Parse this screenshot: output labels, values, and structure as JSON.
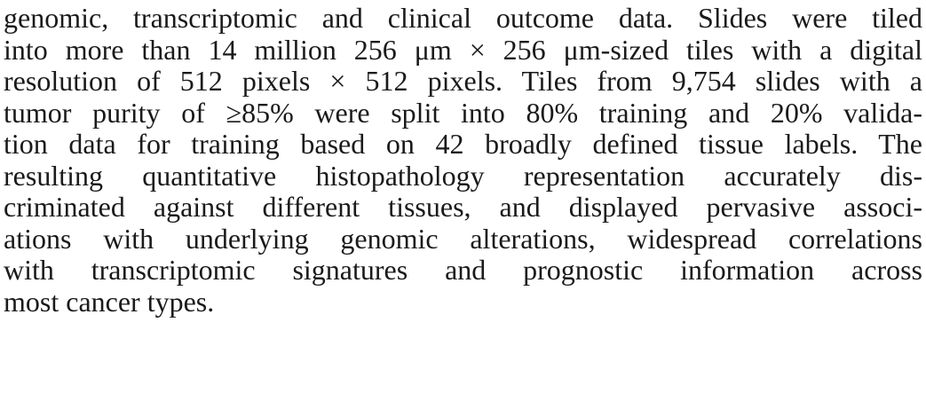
{
  "paragraph": {
    "lines": [
      "genomic, transcriptomic and clinical outcome data. Slides were tiled",
      "into more than 14 million 256 μm × 256 μm-sized tiles with a digital",
      "resolution of 512 pixels × 512 pixels. Tiles from 9,754 slides with a",
      "tumor purity of ≥85% were split into 80% training and 20% valida-",
      "tion data for training based on 42 broadly defined tissue labels. The",
      "resulting quantitative histopathology representation accurately dis-",
      "criminated against different tissues, and displayed pervasive associ-",
      "ations with underlying genomic alterations, widespread correlations",
      "with transcriptomic signatures and prognostic information across",
      "most cancer types."
    ]
  }
}
